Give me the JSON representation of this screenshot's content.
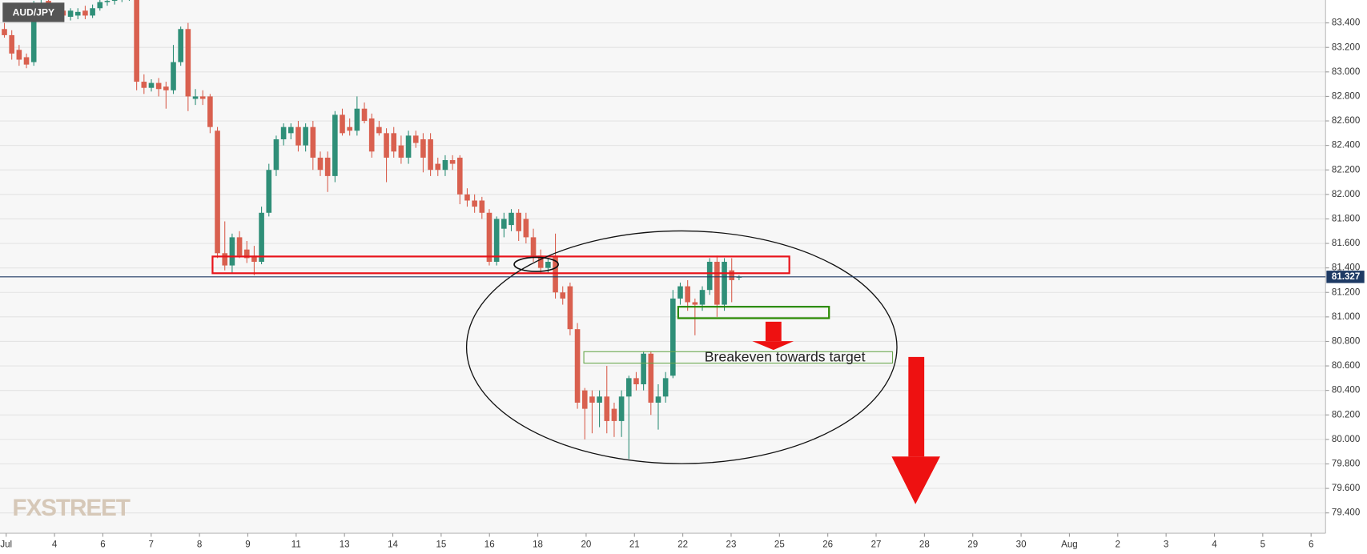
{
  "chart_data": {
    "type": "candlestick",
    "symbol": "AUD/JPY",
    "watermark": "FXSTREET",
    "annotation": "Breakeven towards target",
    "up_color": "#2f8f78",
    "down_color": "#d9604f",
    "grid": true,
    "ylim": [
      79.234,
      83.587
    ],
    "yticks": [
      {
        "value": 79.4,
        "label": "79.400"
      },
      {
        "value": 79.6,
        "label": "79.600"
      },
      {
        "value": 79.8,
        "label": "79.800"
      },
      {
        "value": 80.0,
        "label": "80.000"
      },
      {
        "value": 80.2,
        "label": "80.200"
      },
      {
        "value": 80.4,
        "label": "80.400"
      },
      {
        "value": 80.6,
        "label": "80.600"
      },
      {
        "value": 80.8,
        "label": "80.800"
      },
      {
        "value": 81.0,
        "label": "81.000"
      },
      {
        "value": 81.2,
        "label": "81.200"
      },
      {
        "value": 81.4,
        "label": "81.400"
      },
      {
        "value": 81.6,
        "label": "81.600"
      },
      {
        "value": 81.8,
        "label": "81.800"
      },
      {
        "value": 82.0,
        "label": "82.000"
      },
      {
        "value": 82.2,
        "label": "82.200"
      },
      {
        "value": 82.4,
        "label": "82.400"
      },
      {
        "value": 82.6,
        "label": "82.600"
      },
      {
        "value": 82.8,
        "label": "82.800"
      },
      {
        "value": 83.0,
        "label": "83.000"
      },
      {
        "value": 83.2,
        "label": "83.200"
      },
      {
        "value": 83.4,
        "label": "83.400"
      }
    ],
    "last_price": 81.327,
    "x_labels": [
      "Jul",
      "4",
      "6",
      "7",
      "8",
      "9",
      "11",
      "13",
      "14",
      "15",
      "16",
      "18",
      "20",
      "21",
      "22",
      "23",
      "25",
      "26",
      "27",
      "28",
      "29",
      "30",
      "Aug",
      "2",
      "3",
      "4",
      "5",
      "6"
    ],
    "open": [
      83.35,
      83.3,
      83.18,
      83.12,
      83.08,
      83.5,
      83.58,
      83.5,
      83.5,
      83.45,
      83.46,
      83.5,
      83.46,
      83.52,
      83.57,
      83.58,
      83.6,
      83.62,
      83.62,
      82.92,
      82.87,
      82.91,
      82.88,
      82.85,
      83.08,
      83.35,
      82.78,
      82.8,
      82.8,
      82.52,
      81.52,
      81.42,
      81.65,
      81.55,
      81.5,
      81.45,
      81.85,
      82.2,
      82.45,
      82.5,
      82.55,
      82.4,
      82.55,
      82.3,
      82.3,
      82.15,
      82.65,
      82.55,
      82.52,
      82.7,
      82.62,
      82.55,
      82.5,
      82.5,
      82.4,
      82.3,
      82.48,
      82.45,
      82.45,
      82.25,
      82.2,
      82.28,
      82.3,
      82.0,
      81.95,
      81.95,
      81.85,
      81.45,
      81.72,
      81.75,
      81.85,
      81.8,
      81.65,
      81.5,
      81.4,
      81.5,
      81.2,
      81.25,
      80.9,
      80.4,
      80.35,
      80.3,
      80.35,
      80.25,
      80.15,
      80.35,
      80.5,
      80.45,
      80.7,
      80.3,
      80.35,
      80.52,
      81.15,
      81.25,
      81.12,
      81.1,
      81.22,
      81.45,
      81.1,
      81.38,
      81.32
    ],
    "high": [
      83.4,
      83.34,
      83.22,
      83.15,
      83.58,
      83.6,
      83.6,
      83.54,
      83.55,
      83.52,
      83.52,
      83.54,
      83.55,
      83.59,
      83.6,
      83.62,
      83.65,
      83.66,
      83.66,
      82.98,
      82.94,
      82.95,
      82.92,
      83.22,
      83.37,
      83.4,
      82.86,
      82.85,
      82.82,
      82.55,
      81.78,
      81.68,
      81.7,
      81.62,
      81.58,
      81.9,
      82.25,
      82.48,
      82.58,
      82.58,
      82.6,
      82.58,
      82.6,
      82.35,
      82.35,
      82.68,
      82.7,
      82.62,
      82.8,
      82.75,
      82.66,
      82.6,
      82.54,
      82.55,
      82.48,
      82.52,
      82.52,
      82.5,
      82.5,
      82.3,
      82.32,
      82.32,
      82.32,
      82.05,
      82.0,
      81.98,
      81.88,
      81.82,
      81.85,
      81.88,
      81.88,
      81.85,
      81.72,
      81.55,
      81.48,
      81.68,
      81.25,
      81.28,
      80.95,
      80.42,
      80.4,
      80.4,
      80.6,
      80.3,
      80.4,
      80.52,
      80.55,
      80.72,
      80.72,
      80.45,
      80.55,
      81.22,
      81.28,
      81.3,
      81.15,
      81.25,
      81.48,
      81.5,
      81.48,
      81.48,
      81.34
    ],
    "low": [
      83.28,
      83.1,
      83.05,
      83.03,
      83.05,
      83.45,
      83.46,
      83.42,
      83.43,
      83.42,
      83.43,
      83.43,
      83.44,
      83.5,
      83.54,
      83.55,
      83.57,
      83.58,
      82.85,
      82.82,
      82.84,
      82.8,
      82.7,
      82.82,
      83.05,
      82.68,
      82.73,
      82.73,
      82.5,
      81.48,
      81.38,
      81.36,
      81.48,
      81.44,
      81.34,
      81.43,
      81.82,
      82.15,
      82.4,
      82.45,
      82.35,
      82.35,
      82.2,
      82.15,
      82.02,
      82.1,
      82.48,
      82.48,
      82.48,
      82.58,
      82.3,
      82.48,
      82.1,
      82.3,
      82.25,
      82.25,
      82.38,
      82.18,
      82.15,
      82.15,
      82.15,
      82.2,
      81.92,
      81.9,
      81.85,
      81.8,
      81.42,
      81.42,
      81.65,
      81.7,
      81.62,
      81.6,
      81.45,
      81.36,
      81.36,
      81.15,
      81.1,
      80.85,
      80.25,
      80.0,
      80.05,
      80.1,
      80.05,
      80.02,
      80.02,
      79.84,
      80.4,
      80.4,
      80.2,
      80.08,
      80.3,
      80.5,
      81.1,
      81.05,
      80.85,
      81.05,
      81.18,
      81.0,
      81.05,
      81.12,
      81.3
    ],
    "close": [
      83.3,
      83.15,
      83.1,
      83.06,
      83.5,
      83.56,
      83.5,
      83.45,
      83.46,
      83.5,
      83.49,
      83.46,
      83.52,
      83.57,
      83.58,
      83.6,
      83.62,
      83.62,
      82.92,
      82.87,
      82.91,
      82.86,
      82.85,
      83.08,
      83.35,
      82.8,
      82.8,
      82.78,
      82.55,
      81.52,
      81.42,
      81.65,
      81.5,
      81.48,
      81.45,
      81.85,
      82.2,
      82.45,
      82.55,
      82.55,
      82.4,
      82.55,
      82.3,
      82.2,
      82.15,
      82.65,
      82.5,
      82.52,
      82.7,
      82.6,
      82.35,
      82.5,
      82.3,
      82.35,
      82.3,
      82.48,
      82.42,
      82.3,
      82.2,
      82.2,
      82.28,
      82.25,
      82.0,
      81.95,
      81.9,
      81.85,
      81.45,
      81.8,
      81.8,
      81.85,
      81.7,
      81.65,
      81.5,
      81.4,
      81.45,
      81.2,
      81.15,
      80.9,
      80.3,
      80.25,
      80.3,
      80.35,
      80.15,
      80.15,
      80.35,
      80.5,
      80.45,
      80.7,
      80.3,
      80.35,
      80.5,
      81.15,
      81.25,
      81.12,
      81.1,
      81.22,
      81.45,
      81.1,
      81.45,
      81.3,
      81.327
    ]
  }
}
